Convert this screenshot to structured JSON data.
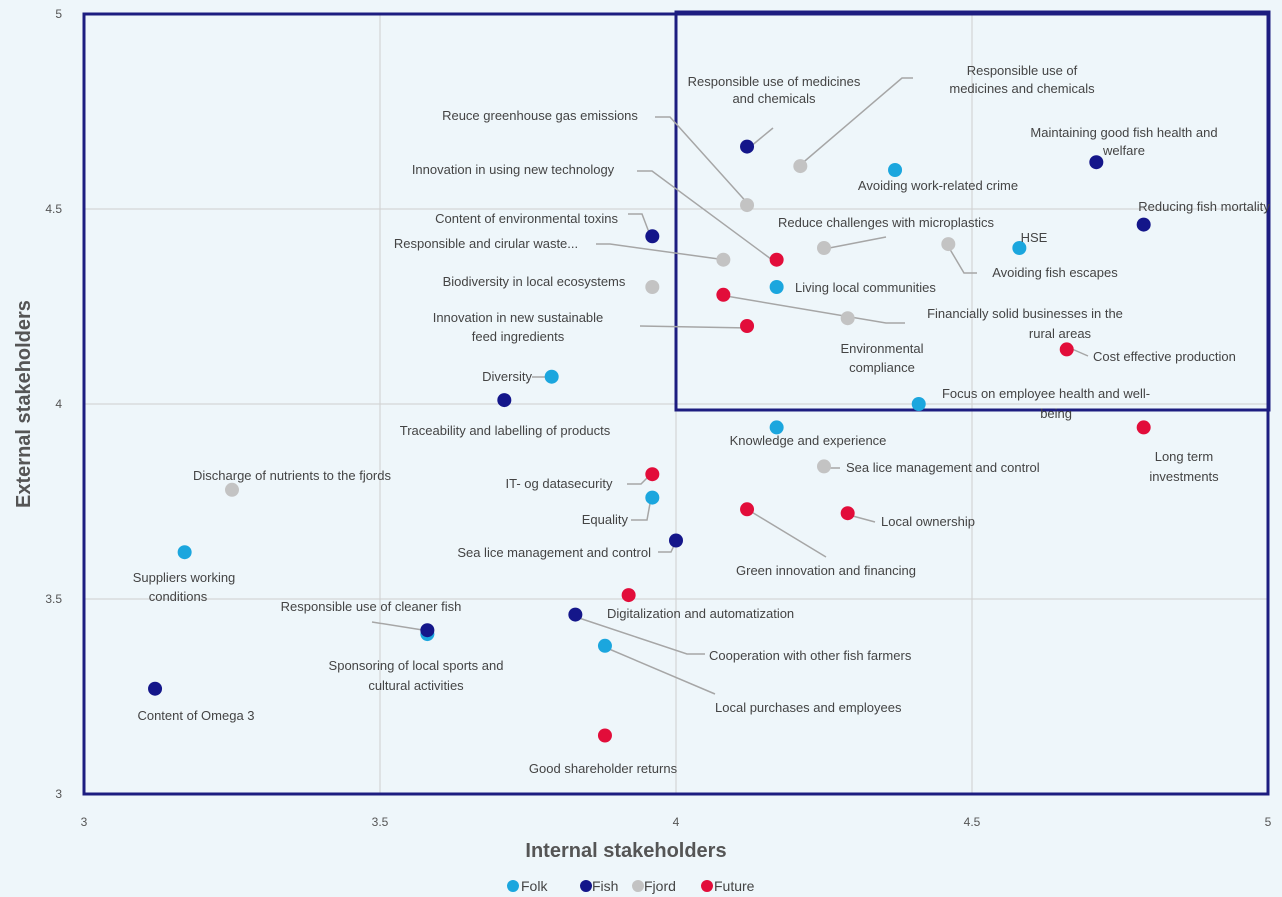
{
  "chart_data": {
    "type": "scatter",
    "xlabel": "Internal stakeholders",
    "ylabel": "External stakeholders",
    "xlim": [
      3,
      5
    ],
    "ylim": [
      3,
      5
    ],
    "x_ticks": [
      "3",
      "3.5",
      "4",
      "4.5",
      "5"
    ],
    "y_ticks": [
      "3",
      "3.5",
      "4",
      "4.5",
      "5"
    ],
    "grid": true,
    "legend_placement": "bottom-center",
    "colors": {
      "Folk": "#1ba6de",
      "Fish": "#14168a",
      "Fjord": "#c3c3c3",
      "Future": "#e20d3a",
      "highlight_box": "#1d1d80"
    },
    "highlight_region": {
      "x": [
        4,
        5
      ],
      "y": [
        4,
        5
      ]
    },
    "series": [
      {
        "name": "Folk",
        "color": "#1ba6de",
        "points": [
          {
            "x": 4.37,
            "y": 4.6,
            "label": "Avoiding work-related crime"
          },
          {
            "x": 4.58,
            "y": 4.4,
            "label": "HSE"
          },
          {
            "x": 4.17,
            "y": 4.3,
            "label": "Living local communities"
          },
          {
            "x": 3.79,
            "y": 4.07,
            "label": "Diversity"
          },
          {
            "x": 4.41,
            "y": 4.0,
            "label": "Focus on employee health and well-being"
          },
          {
            "x": 4.17,
            "y": 3.94,
            "label": "Knowledge and experience"
          },
          {
            "x": 3.96,
            "y": 3.76,
            "label": "Equality"
          },
          {
            "x": 3.17,
            "y": 3.62,
            "label": "Suppliers working conditions"
          },
          {
            "x": 3.58,
            "y": 3.41,
            "label": "Sponsoring of local sports and cultural activities"
          },
          {
            "x": 3.88,
            "y": 3.38,
            "label": "Local purchases and employees"
          }
        ]
      },
      {
        "name": "Fish",
        "color": "#14168a",
        "points": [
          {
            "x": 4.12,
            "y": 4.66,
            "label": "Responsible use of medicines and chemicals"
          },
          {
            "x": 4.71,
            "y": 4.62,
            "label": "Maintaining good fish health and welfare"
          },
          {
            "x": 4.79,
            "y": 4.46,
            "label": "Reducing fish mortality"
          },
          {
            "x": 3.96,
            "y": 4.43,
            "label": "Content of environmental toxins"
          },
          {
            "x": 3.71,
            "y": 4.01,
            "label": "Traceability and labelling of products"
          },
          {
            "x": 4.0,
            "y": 3.65,
            "label": "Sea lice management and control"
          },
          {
            "x": 3.58,
            "y": 3.42,
            "label": "Responsible use of cleaner fish"
          },
          {
            "x": 3.83,
            "y": 3.46,
            "label": "Cooperation with other fish farmers"
          },
          {
            "x": 3.12,
            "y": 3.27,
            "label": "Content of Omega 3"
          }
        ]
      },
      {
        "name": "Fjord",
        "color": "#c3c3c3",
        "points": [
          {
            "x": 4.21,
            "y": 4.61,
            "label": "Responsible use of medicines and chemicals"
          },
          {
            "x": 4.12,
            "y": 4.51,
            "label": "Reuce greenhouse gas emissions"
          },
          {
            "x": 4.25,
            "y": 4.4,
            "label": "Reduce challenges with microplastics"
          },
          {
            "x": 4.46,
            "y": 4.41,
            "label": "Avoiding fish escapes"
          },
          {
            "x": 4.08,
            "y": 4.37,
            "label": "Responsible and cirular waste..."
          },
          {
            "x": 3.96,
            "y": 4.3,
            "label": "Biodiversity in local ecosystems"
          },
          {
            "x": 4.29,
            "y": 4.22,
            "label": "Environmental compliance"
          },
          {
            "x": 4.25,
            "y": 3.84,
            "label": "Sea lice management and control"
          },
          {
            "x": 3.25,
            "y": 3.78,
            "label": "Discharge of nutrients to the fjords"
          }
        ]
      },
      {
        "name": "Future",
        "color": "#e20d3a",
        "points": [
          {
            "x": 4.17,
            "y": 4.37,
            "label": "Innovation in using new technology"
          },
          {
            "x": 4.08,
            "y": 4.28,
            "label": "Financially solid businesses in the rural areas"
          },
          {
            "x": 4.12,
            "y": 4.2,
            "label": "Innovation in new sustainable feed ingredients"
          },
          {
            "x": 4.66,
            "y": 4.14,
            "label": "Cost effective production"
          },
          {
            "x": 4.79,
            "y": 3.94,
            "label": "Long term investments"
          },
          {
            "x": 3.96,
            "y": 3.82,
            "label": "IT- og datasecurity"
          },
          {
            "x": 4.12,
            "y": 3.73,
            "label": "Green innovation and financing"
          },
          {
            "x": 4.29,
            "y": 3.72,
            "label": "Local ownership"
          },
          {
            "x": 3.92,
            "y": 3.51,
            "label": "Digitalization and automatization"
          },
          {
            "x": 3.88,
            "y": 3.15,
            "label": "Good shareholder returns"
          }
        ]
      }
    ]
  }
}
